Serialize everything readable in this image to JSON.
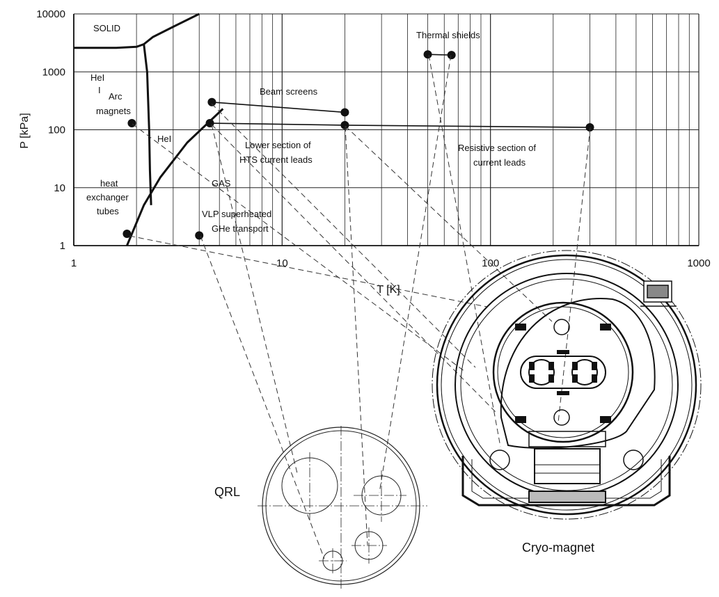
{
  "chart_data": {
    "type": "scatter",
    "xscale": "log",
    "yscale": "log",
    "xlim": [
      1,
      1000
    ],
    "ylim": [
      1,
      10000
    ],
    "xlabel": "T [K]",
    "ylabel": "P [kPa]",
    "x_ticks": [
      "1",
      "10",
      "100",
      "1000"
    ],
    "y_ticks": [
      "1",
      "10",
      "100",
      "1000",
      "10000"
    ],
    "grid": true,
    "points": [
      {
        "x": 1.9,
        "y": 130
      },
      {
        "x": 1.8,
        "y": 1.6
      },
      {
        "x": 4.6,
        "y": 300
      },
      {
        "x": 4.5,
        "y": 130
      },
      {
        "x": 4.0,
        "y": 1.5
      },
      {
        "x": 20,
        "y": 200
      },
      {
        "x": 20,
        "y": 120
      },
      {
        "x": 50,
        "y": 2000
      },
      {
        "x": 65,
        "y": 1950
      },
      {
        "x": 300,
        "y": 110
      }
    ],
    "segments": [
      {
        "from": [
          4.6,
          300
        ],
        "to": [
          20,
          200
        ]
      },
      {
        "from": [
          4.5,
          130
        ],
        "to": [
          20,
          120
        ]
      },
      {
        "from": [
          20,
          120
        ],
        "to": [
          300,
          110
        ]
      },
      {
        "from": [
          50,
          2000
        ],
        "to": [
          65,
          1950
        ]
      }
    ],
    "phase_curves": [
      {
        "points": [
          [
            1,
            2600
          ],
          [
            1.6,
            2600
          ],
          [
            2.0,
            2700
          ],
          [
            2.17,
            3000
          ]
        ]
      },
      {
        "points": [
          [
            2.17,
            3000
          ],
          [
            2.4,
            4000
          ],
          [
            3.0,
            6000
          ],
          [
            4.0,
            10000
          ]
        ]
      },
      {
        "points": [
          [
            2.17,
            3000
          ],
          [
            2.25,
            1000
          ],
          [
            2.3,
            100
          ],
          [
            2.32,
            20
          ],
          [
            2.35,
            5
          ]
        ]
      },
      {
        "points": [
          [
            1.8,
            1
          ],
          [
            2.17,
            5
          ],
          [
            2.6,
            15
          ],
          [
            3.5,
            60
          ],
          [
            5.2,
            230
          ]
        ]
      }
    ],
    "annotations": [
      {
        "id": "solid",
        "text": "SOLID"
      },
      {
        "id": "hei",
        "text": "HeI"
      },
      {
        "id": "hei_i",
        "text": "I"
      },
      {
        "id": "arc1",
        "text": "Arc"
      },
      {
        "id": "arc2",
        "text": "magnets"
      },
      {
        "id": "heii",
        "text": "HeI"
      },
      {
        "id": "gas",
        "text": "GAS"
      },
      {
        "id": "hx1",
        "text": "heat"
      },
      {
        "id": "hx2",
        "text": "exchanger"
      },
      {
        "id": "hx3",
        "text": "tubes"
      },
      {
        "id": "vlp1",
        "text": "VLP superheated"
      },
      {
        "id": "vlp2",
        "text": "GHe transport"
      },
      {
        "id": "beam",
        "text": "Beam screens"
      },
      {
        "id": "hts1",
        "text": "Lower section of"
      },
      {
        "id": "hts2",
        "text": "HTS current leads"
      },
      {
        "id": "thermal",
        "text": "Thermal shields"
      },
      {
        "id": "res1",
        "text": "Resistive section of"
      },
      {
        "id": "res2",
        "text": "current leads"
      }
    ]
  },
  "labels": {
    "qrl": "QRL",
    "cryo": "Cryo-magnet"
  },
  "colors": {
    "line": "#111111",
    "grid": "#222222",
    "background": "#ffffff"
  }
}
